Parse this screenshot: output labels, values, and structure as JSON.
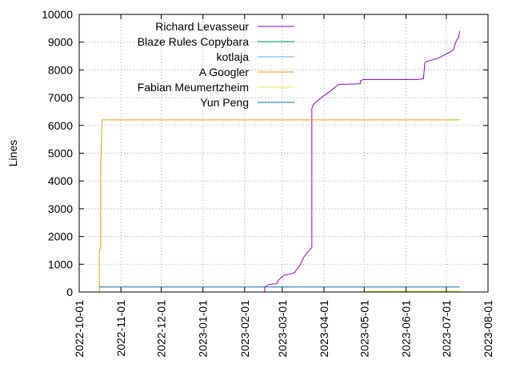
{
  "chart_data": {
    "type": "line",
    "title": "",
    "xlabel": "",
    "ylabel": "Lines",
    "x_type": "date",
    "xlim": [
      "2022-10-01",
      "2023-08-01"
    ],
    "ylim": [
      0,
      10000
    ],
    "x_ticks": [
      "2022-10-01",
      "2022-11-01",
      "2022-12-01",
      "2023-01-01",
      "2023-02-01",
      "2023-03-01",
      "2023-04-01",
      "2023-05-01",
      "2023-06-01",
      "2023-07-01",
      "2023-08-01"
    ],
    "y_ticks": [
      "0",
      "1000",
      "2000",
      "3000",
      "4000",
      "5000",
      "6000",
      "7000",
      "8000",
      "9000",
      "10000"
    ],
    "grid": true,
    "legend_position": "top-left",
    "series": [
      {
        "name": "Richard Levasseur",
        "color": "#9400d3",
        "x": [
          "2023-02-16",
          "2023-02-16",
          "2023-02-19",
          "2023-02-25",
          "2023-02-26",
          "2023-03-02",
          "2023-03-07",
          "2023-03-09",
          "2023-03-10",
          "2023-03-14",
          "2023-03-17",
          "2023-03-20",
          "2023-03-23",
          "2023-03-23",
          "2023-03-23",
          "2023-03-24",
          "2023-03-30",
          "2023-04-06",
          "2023-04-12",
          "2023-04-28",
          "2023-04-28",
          "2023-04-30",
          "2023-05-15",
          "2023-06-09",
          "2023-06-14",
          "2023-06-15",
          "2023-06-16",
          "2023-06-25",
          "2023-06-30",
          "2023-07-02",
          "2023-07-05",
          "2023-07-06",
          "2023-07-08",
          "2023-07-09",
          "2023-07-10",
          "2023-07-11"
        ],
        "y": [
          0,
          180,
          270,
          300,
          420,
          600,
          650,
          680,
          700,
          950,
          1250,
          1450,
          1600,
          6300,
          6600,
          6750,
          7000,
          7250,
          7480,
          7500,
          7600,
          7650,
          7650,
          7650,
          7680,
          8250,
          8300,
          8420,
          8550,
          8600,
          8680,
          8700,
          9000,
          9100,
          9150,
          9400
        ]
      },
      {
        "name": "Blaze Rules Copybara",
        "color": "#009e73",
        "x": [
          "2022-10-16",
          "2023-07-11"
        ],
        "y": [
          0,
          0
        ]
      },
      {
        "name": "kotlaja",
        "color": "#56b4e9",
        "x": [
          "2022-10-16",
          "2023-07-11"
        ],
        "y": [
          0,
          0
        ]
      },
      {
        "name": "A Googler",
        "color": "#e69f00",
        "x": [
          "2022-10-16",
          "2022-10-16",
          "2022-10-17",
          "2022-10-17",
          "2022-10-18",
          "2023-07-11"
        ],
        "y": [
          0,
          1500,
          1600,
          4600,
          6200,
          6200
        ]
      },
      {
        "name": "Fabian Meumertzheim",
        "color": "#f0e442",
        "x": [
          "2023-04-28",
          "2023-07-11"
        ],
        "y": [
          20,
          30
        ]
      },
      {
        "name": "Yun Peng",
        "color": "#0072b2",
        "x": [
          "2022-10-16",
          "2023-07-11"
        ],
        "y": [
          180,
          180
        ]
      }
    ]
  }
}
